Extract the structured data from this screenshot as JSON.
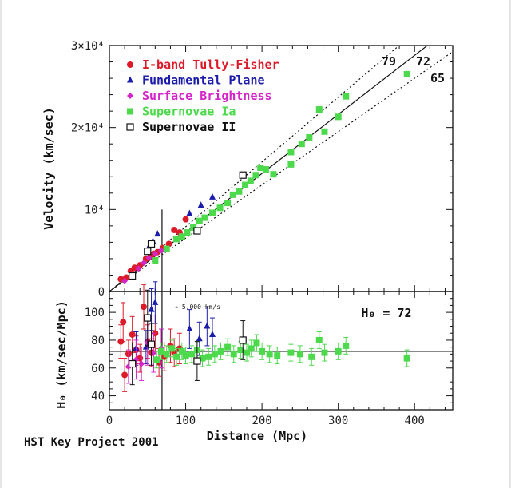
{
  "footer": "HST Key Project 2001",
  "chart_data": [
    {
      "type": "scatter",
      "panel": "top",
      "ylabel": "Velocity (km/sec)",
      "xlim": [
        0,
        450
      ],
      "ylim": [
        0,
        30000
      ],
      "yticklabels": [
        "0",
        "10⁴",
        "2×10⁴",
        "3×10⁴"
      ],
      "lines": [
        {
          "label": "79",
          "slope": 79,
          "style": "dotted"
        },
        {
          "label": "72",
          "slope": 72,
          "style": "solid"
        },
        {
          "label": "65",
          "slope": 65,
          "style": "dotted"
        }
      ],
      "legend_position": "top-left",
      "series": [
        {
          "name": "I-band Tully-Fisher",
          "color": "#dd1a2a",
          "marker": "circle",
          "points": [
            [
              15,
              1500
            ],
            [
              22,
              1700
            ],
            [
              28,
              2500
            ],
            [
              33,
              2900
            ],
            [
              40,
              3200
            ],
            [
              48,
              4000
            ],
            [
              54,
              4300
            ],
            [
              58,
              4600
            ],
            [
              63,
              4800
            ],
            [
              70,
              5300
            ],
            [
              78,
              5800
            ],
            [
              85,
              7500
            ],
            [
              92,
              7200
            ],
            [
              100,
              8800
            ]
          ]
        },
        {
          "name": "Fundamental Plane",
          "color": "#1c1caa",
          "marker": "triangle",
          "points": [
            [
              50,
              5100
            ],
            [
              57,
              6100
            ],
            [
              63,
              7000
            ],
            [
              105,
              9500
            ],
            [
              120,
              10500
            ],
            [
              135,
              11500
            ]
          ]
        },
        {
          "name": "Surface Brightness",
          "color": "#d425c8",
          "marker": "diamond",
          "points": [
            [
              20,
              1300
            ],
            [
              30,
              2100
            ],
            [
              38,
              2800
            ],
            [
              45,
              3500
            ],
            [
              52,
              4100
            ],
            [
              60,
              4600
            ],
            [
              68,
              5000
            ]
          ]
        },
        {
          "name": "Supernovae Ia",
          "color": "#4cd94c",
          "marker": "square",
          "points": [
            [
              60,
              3800
            ],
            [
              75,
              5200
            ],
            [
              88,
              6400
            ],
            [
              95,
              6700
            ],
            [
              102,
              7200
            ],
            [
              110,
              7800
            ],
            [
              118,
              8600
            ],
            [
              125,
              9000
            ],
            [
              135,
              9600
            ],
            [
              145,
              10200
            ],
            [
              155,
              10800
            ],
            [
              162,
              11800
            ],
            [
              170,
              12200
            ],
            [
              178,
              13000
            ],
            [
              185,
              13500
            ],
            [
              192,
              14200
            ],
            [
              198,
              15100
            ],
            [
              205,
              14900
            ],
            [
              215,
              14300
            ],
            [
              238,
              15500
            ],
            [
              238,
              17000
            ],
            [
              252,
              18000
            ],
            [
              262,
              18800
            ],
            [
              275,
              22200
            ],
            [
              282,
              19500
            ],
            [
              300,
              21300
            ],
            [
              310,
              23800
            ],
            [
              390,
              26500
            ]
          ]
        },
        {
          "name": "Supernovae II",
          "color": "#111111",
          "marker": "open-square",
          "points": [
            [
              30,
              1900
            ],
            [
              50,
              4900
            ],
            [
              55,
              5800
            ],
            [
              115,
              7400
            ],
            [
              175,
              14200
            ]
          ]
        }
      ]
    },
    {
      "type": "scatter",
      "panel": "bottom",
      "xlabel": "Distance (Mpc)",
      "ylabel": "H₀ (km/sec/Mpc)",
      "xlim": [
        0,
        450
      ],
      "ylim": [
        30,
        115
      ],
      "xticks": [
        0,
        100,
        200,
        300,
        400
      ],
      "yticks": [
        40,
        60,
        80,
        100
      ],
      "hline": 72,
      "vline_x": 69,
      "annotation": "H₀ = 72",
      "velocity_marker": {
        "x": 85,
        "y": 104,
        "label": "→ 5,000 km/s"
      },
      "series": [
        {
          "name": "I-band Tully-Fisher",
          "color": "#dd1a2a",
          "marker": "circle",
          "points": [
            [
              15,
              79,
              12
            ],
            [
              18,
              93,
              14
            ],
            [
              20,
              55,
              12
            ],
            [
              25,
              70,
              10
            ],
            [
              30,
              84,
              13
            ],
            [
              35,
              73,
              10
            ],
            [
              40,
              67,
              10
            ],
            [
              45,
              104,
              16
            ],
            [
              50,
              79,
              12
            ],
            [
              55,
              71,
              10
            ],
            [
              60,
              85,
              13
            ],
            [
              65,
              64,
              10
            ],
            [
              72,
              68,
              10
            ],
            [
              80,
              76,
              12
            ],
            [
              85,
              71,
              10
            ],
            [
              92,
              74,
              11
            ]
          ]
        },
        {
          "name": "Fundamental Plane",
          "color": "#1c1caa",
          "marker": "triangle",
          "points": [
            [
              35,
              74,
              12
            ],
            [
              48,
              75,
              12
            ],
            [
              55,
              102,
              15
            ],
            [
              60,
              107,
              15
            ],
            [
              105,
              88,
              14
            ],
            [
              118,
              81,
              12
            ],
            [
              128,
              90,
              14
            ],
            [
              135,
              84,
              12
            ]
          ]
        },
        {
          "name": "Surface Brightness",
          "color": "#d425c8",
          "marker": "diamond",
          "points": [
            [
              25,
              61,
              12
            ],
            [
              35,
              66,
              14
            ],
            [
              42,
              63,
              12
            ],
            [
              50,
              78,
              16
            ],
            [
              58,
              71,
              14
            ],
            [
              68,
              74,
              14
            ]
          ]
        },
        {
          "name": "Supernovae Ia",
          "color": "#4cd94c",
          "marker": "square",
          "points": [
            [
              62,
              66,
              6
            ],
            [
              68,
              72,
              6
            ],
            [
              75,
              70,
              6
            ],
            [
              82,
              74,
              6
            ],
            [
              88,
              68,
              6
            ],
            [
              95,
              72,
              6
            ],
            [
              100,
              69,
              6
            ],
            [
              108,
              70,
              6
            ],
            [
              115,
              73,
              6
            ],
            [
              122,
              67,
              6
            ],
            [
              130,
              68,
              6
            ],
            [
              138,
              70,
              6
            ],
            [
              146,
              72,
              6
            ],
            [
              155,
              75,
              6
            ],
            [
              163,
              70,
              6
            ],
            [
              172,
              73,
              6
            ],
            [
              180,
              71,
              6
            ],
            [
              186,
              74,
              6
            ],
            [
              193,
              78,
              6
            ],
            [
              200,
              72,
              6
            ],
            [
              210,
              70,
              6
            ],
            [
              220,
              69,
              6
            ],
            [
              238,
              71,
              6
            ],
            [
              250,
              70,
              6
            ],
            [
              265,
              68,
              6
            ],
            [
              275,
              80,
              6
            ],
            [
              282,
              71,
              6
            ],
            [
              300,
              72,
              6
            ],
            [
              310,
              76,
              6
            ],
            [
              390,
              67,
              6
            ]
          ]
        },
        {
          "name": "Supernovae II",
          "color": "#111111",
          "marker": "open-square",
          "points": [
            [
              30,
              63,
              15
            ],
            [
              50,
              96,
              20
            ],
            [
              55,
              77,
              15
            ],
            [
              115,
              65,
              14
            ],
            [
              175,
              80,
              14
            ]
          ]
        }
      ]
    }
  ]
}
